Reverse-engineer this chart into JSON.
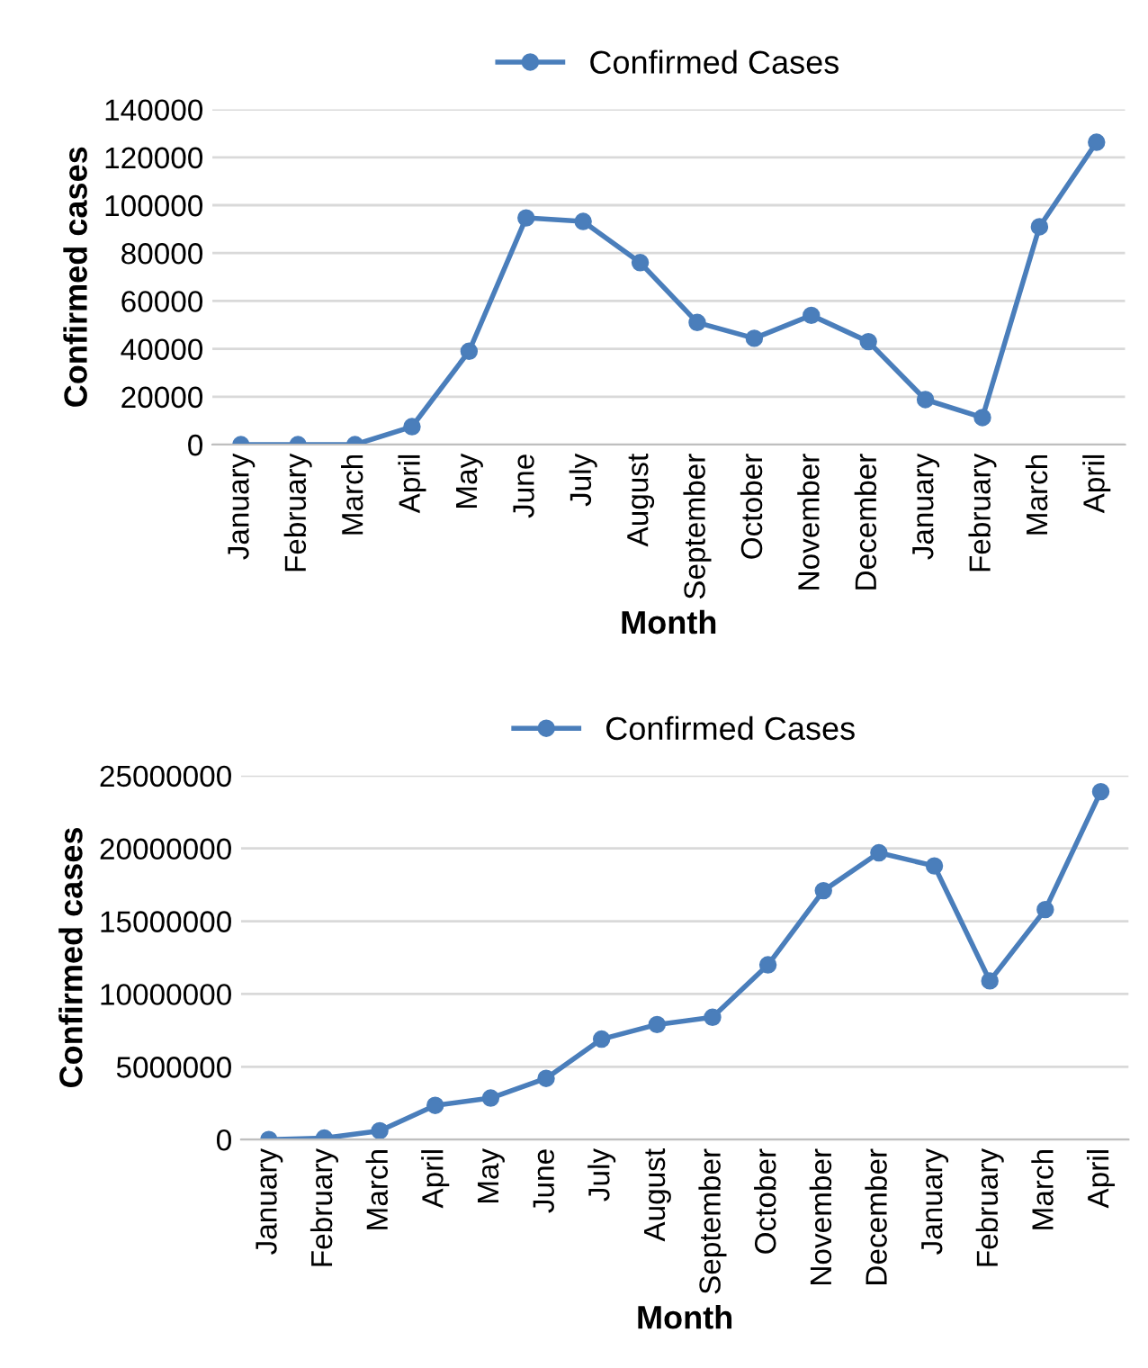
{
  "chart_data": [
    {
      "type": "line",
      "xlabel": "Month",
      "ylabel": "Confirmed cases",
      "categories": [
        "January",
        "February",
        "March",
        "April",
        "May",
        "June",
        "July",
        "August",
        "September",
        "October",
        "November",
        "December",
        "January",
        "February",
        "March",
        "April"
      ],
      "series": [
        {
          "name": "Confirmed Cases",
          "color": "#4a7ebb",
          "values": [
            0,
            0,
            0,
            7500,
            39000,
            94700,
            93200,
            76000,
            51000,
            44400,
            54000,
            43000,
            18800,
            11300,
            91000,
            126300
          ]
        }
      ],
      "ylim": [
        0,
        140000
      ],
      "yticks": [
        0,
        20000,
        40000,
        60000,
        80000,
        100000,
        120000,
        140000
      ],
      "grid": "y",
      "legend": "top",
      "marker": "circle",
      "line_style": "solid"
    },
    {
      "type": "line",
      "xlabel": "Month",
      "ylabel": "Confirmed cases",
      "categories": [
        "January",
        "February",
        "March",
        "April",
        "May",
        "June",
        "July",
        "August",
        "September",
        "October",
        "November",
        "December",
        "January",
        "February",
        "March",
        "April"
      ],
      "series": [
        {
          "name": "Confirmed Cases",
          "color": "#4a7ebb",
          "values": [
            0,
            100000,
            600000,
            2350000,
            2850000,
            4200000,
            6900000,
            7900000,
            8400000,
            12000000,
            17100000,
            19700000,
            18800000,
            10900000,
            15800000,
            23900000
          ]
        }
      ],
      "ylim": [
        0,
        25000000
      ],
      "yticks": [
        0,
        5000000,
        10000000,
        15000000,
        20000000,
        25000000
      ],
      "grid": "y",
      "legend": "top",
      "marker": "circle",
      "line_style": "solid"
    }
  ]
}
